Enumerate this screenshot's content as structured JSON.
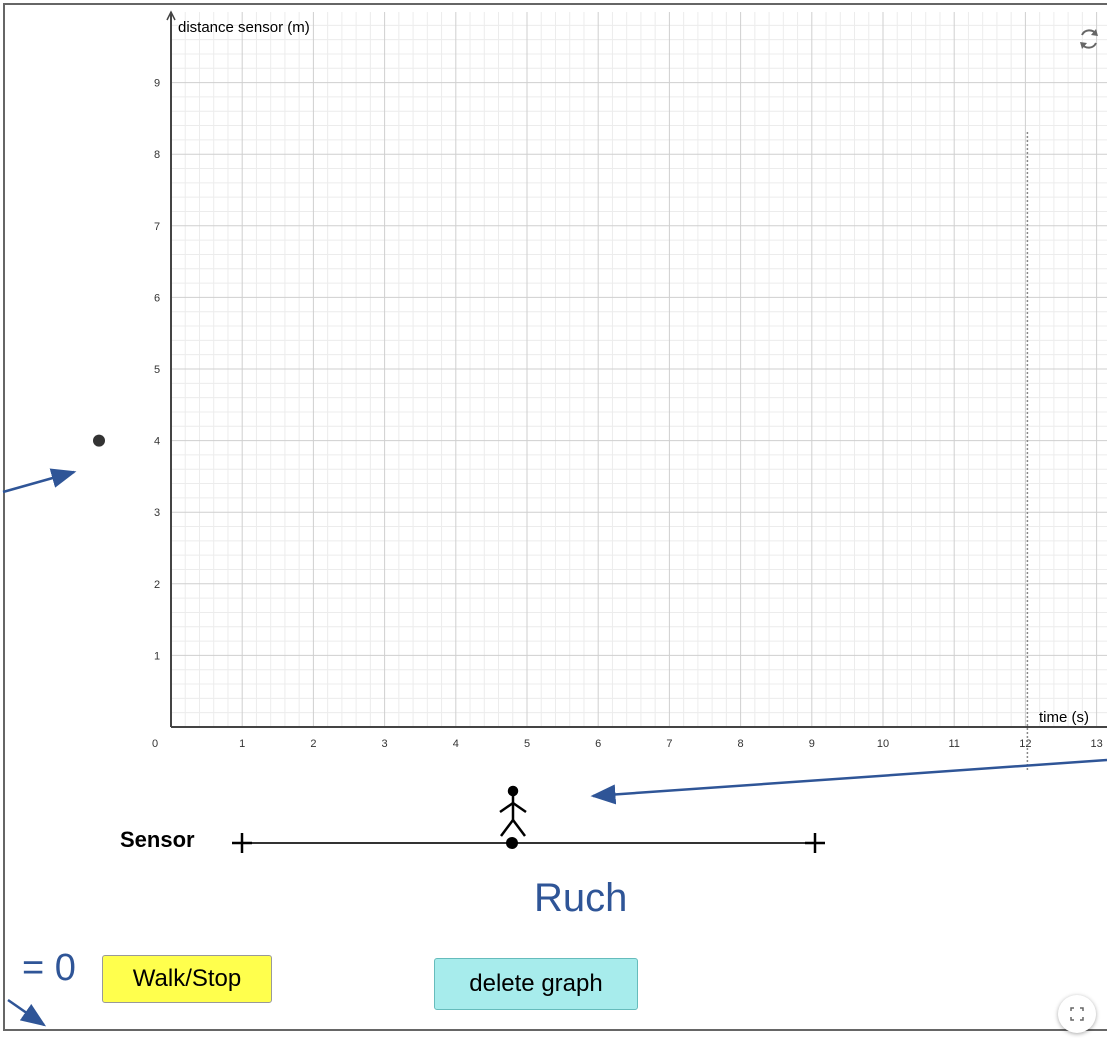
{
  "applet": {
    "sensor_label": "Sensor",
    "walk_stop_label": "Walk/Stop",
    "delete_graph_label": "delete graph"
  },
  "annotations": {
    "ruch": "Ruch",
    "equals_zero": "= 0"
  },
  "icons": {
    "reset": "reset-icon",
    "fullscreen": "fullscreen-icon",
    "walker": "stick-figure-icon"
  },
  "colors": {
    "annotation_blue": "#2f5597",
    "walk_button": "#ffff4d",
    "delete_button": "#a7ecec"
  },
  "chart_data": {
    "type": "line",
    "xlabel": "time (s)",
    "ylabel": "distance sensor (m)",
    "x_ticks": [
      "0",
      "1",
      "2",
      "3",
      "4",
      "5",
      "6",
      "7",
      "8",
      "9",
      "10",
      "11",
      "12",
      "13"
    ],
    "y_ticks": [
      "1",
      "2",
      "3",
      "4",
      "5",
      "6",
      "7",
      "8",
      "9"
    ],
    "xlim": [
      0,
      13
    ],
    "ylim": [
      0,
      9.7
    ],
    "grid": true,
    "minor_grid_per_unit": 5,
    "series": [],
    "marker_line_x": 12,
    "point_value_y": 4
  }
}
